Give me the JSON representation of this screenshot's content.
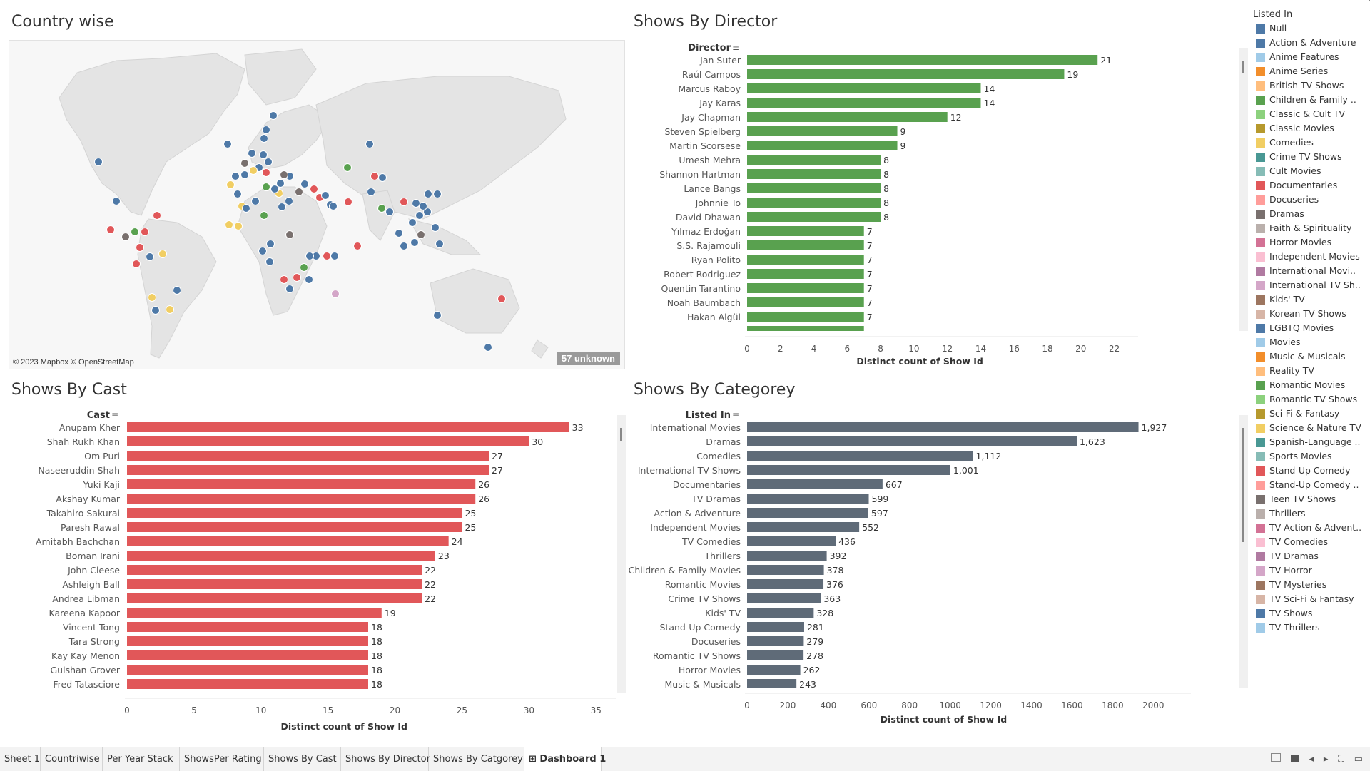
{
  "panels": {
    "country": "Country wise",
    "director": "Shows By Director",
    "cast": "Shows By Cast",
    "category": "Shows By Categorey"
  },
  "map": {
    "attribution": "© 2023 Mapbox © OpenStreetMap",
    "unknown": "57 unknown"
  },
  "legend": {
    "title": "Listed In",
    "items": [
      {
        "label": "Null",
        "color": "#4e79a7"
      },
      {
        "label": "Action & Adventure",
        "color": "#4e79a7"
      },
      {
        "label": "Anime Features",
        "color": "#a0cbe8"
      },
      {
        "label": "Anime Series",
        "color": "#f28e2b"
      },
      {
        "label": "British TV Shows",
        "color": "#ffbe7d"
      },
      {
        "label": "Children & Family ..",
        "color": "#59a14f"
      },
      {
        "label": "Classic & Cult TV",
        "color": "#8cd17d"
      },
      {
        "label": "Classic Movies",
        "color": "#b6992d"
      },
      {
        "label": "Comedies",
        "color": "#f1ce63"
      },
      {
        "label": "Crime TV Shows",
        "color": "#499894"
      },
      {
        "label": "Cult Movies",
        "color": "#86bcb6"
      },
      {
        "label": "Documentaries",
        "color": "#e15759"
      },
      {
        "label": "Docuseries",
        "color": "#ff9d9a"
      },
      {
        "label": "Dramas",
        "color": "#79706e"
      },
      {
        "label": "Faith & Spirituality",
        "color": "#bab0ac"
      },
      {
        "label": "Horror Movies",
        "color": "#d37295"
      },
      {
        "label": "Independent Movies",
        "color": "#fabfd2"
      },
      {
        "label": "International Movi..",
        "color": "#b07aa1"
      },
      {
        "label": "International TV Sh..",
        "color": "#d4a6c8"
      },
      {
        "label": "Kids' TV",
        "color": "#9d7660"
      },
      {
        "label": "Korean TV Shows",
        "color": "#d7b5a6"
      },
      {
        "label": "LGBTQ Movies",
        "color": "#4e79a7"
      },
      {
        "label": "Movies",
        "color": "#a0cbe8"
      },
      {
        "label": "Music & Musicals",
        "color": "#f28e2b"
      },
      {
        "label": "Reality TV",
        "color": "#ffbe7d"
      },
      {
        "label": "Romantic Movies",
        "color": "#59a14f"
      },
      {
        "label": "Romantic TV Shows",
        "color": "#8cd17d"
      },
      {
        "label": "Sci-Fi & Fantasy",
        "color": "#b6992d"
      },
      {
        "label": "Science & Nature TV",
        "color": "#f1ce63"
      },
      {
        "label": "Spanish-Language ..",
        "color": "#499894"
      },
      {
        "label": "Sports Movies",
        "color": "#86bcb6"
      },
      {
        "label": "Stand-Up Comedy",
        "color": "#e15759"
      },
      {
        "label": "Stand-Up Comedy ..",
        "color": "#ff9d9a"
      },
      {
        "label": "Teen TV Shows",
        "color": "#79706e"
      },
      {
        "label": "Thrillers",
        "color": "#bab0ac"
      },
      {
        "label": "TV Action & Advent..",
        "color": "#d37295"
      },
      {
        "label": "TV Comedies",
        "color": "#fabfd2"
      },
      {
        "label": "TV Dramas",
        "color": "#b07aa1"
      },
      {
        "label": "TV Horror",
        "color": "#d4a6c8"
      },
      {
        "label": "TV Mysteries",
        "color": "#9d7660"
      },
      {
        "label": "TV Sci-Fi & Fantasy",
        "color": "#d7b5a6"
      },
      {
        "label": "TV Shows",
        "color": "#4e79a7"
      },
      {
        "label": "TV Thrillers",
        "color": "#a0cbe8"
      }
    ]
  },
  "tabs": [
    {
      "label": "Sheet 1",
      "active": false
    },
    {
      "label": "Countriwise",
      "active": false
    },
    {
      "label": "Per Year Stack",
      "active": false
    },
    {
      "label": "ShowsPer Rating",
      "active": false
    },
    {
      "label": "Shows By Cast",
      "active": false
    },
    {
      "label": "Shows By Director",
      "active": false
    },
    {
      "label": "Shows By Catgorey",
      "active": false
    },
    {
      "label": "Dashboard 1",
      "active": true
    }
  ],
  "chart_data": [
    {
      "id": "director",
      "type": "bar",
      "orientation": "horizontal",
      "dim_header": "Director",
      "categories": [
        "Jan Suter",
        "Raúl Campos",
        "Marcus Raboy",
        "Jay Karas",
        "Jay Chapman",
        "Steven Spielberg",
        "Martin Scorsese",
        "Umesh Mehra",
        "Shannon Hartman",
        "Lance Bangs",
        "Johnnie To",
        "David Dhawan",
        "Yılmaz Erdoğan",
        "S.S. Rajamouli",
        "Ryan Polito",
        "Robert Rodriguez",
        "Quentin Tarantino",
        "Noah Baumbach",
        "Hakan Algül"
      ],
      "values": [
        21,
        19,
        14,
        14,
        12,
        9,
        9,
        8,
        8,
        8,
        8,
        8,
        7,
        7,
        7,
        7,
        7,
        7,
        7
      ],
      "xlabel": "Distinct count of Show Id",
      "xticks": [
        0,
        2,
        4,
        6,
        8,
        10,
        12,
        14,
        16,
        18,
        20,
        22
      ],
      "xlim": [
        0,
        23
      ],
      "color": "#59a14f"
    },
    {
      "id": "cast",
      "type": "bar",
      "orientation": "horizontal",
      "dim_header": "Cast",
      "categories": [
        "Anupam Kher",
        "Shah Rukh Khan",
        "Om Puri",
        "Naseeruddin Shah",
        "Yuki Kaji",
        "Akshay Kumar",
        "Takahiro Sakurai",
        "Paresh Rawal",
        "Amitabh Bachchan",
        "Boman Irani",
        "John Cleese",
        "Ashleigh Ball",
        "Andrea Libman",
        "Kareena Kapoor",
        "Vincent Tong",
        "Tara Strong",
        "Kay Kay Menon",
        "Gulshan Grover",
        "Fred Tatasciore"
      ],
      "values": [
        33,
        30,
        27,
        27,
        26,
        26,
        25,
        25,
        24,
        23,
        22,
        22,
        22,
        19,
        18,
        18,
        18,
        18,
        18
      ],
      "xlabel": "Distinct count of Show Id",
      "xticks": [
        0,
        5,
        10,
        15,
        20,
        25,
        30,
        35
      ],
      "xlim": [
        0,
        36
      ],
      "color": "#e15759"
    },
    {
      "id": "category",
      "type": "bar",
      "orientation": "horizontal",
      "dim_header": "Listed In",
      "categories": [
        "International Movies",
        "Dramas",
        "Comedies",
        "International TV Shows",
        "Documentaries",
        "TV Dramas",
        "Action & Adventure",
        "Independent Movies",
        "TV Comedies",
        "Thrillers",
        "Children & Family Movies",
        "Romantic Movies",
        "Crime TV Shows",
        "Kids' TV",
        "Stand-Up Comedy",
        "Docuseries",
        "Romantic TV Shows",
        "Horror Movies",
        "Music & Musicals"
      ],
      "values": [
        1927,
        1623,
        1112,
        1001,
        667,
        599,
        597,
        552,
        436,
        392,
        378,
        376,
        363,
        328,
        281,
        279,
        278,
        262,
        243
      ],
      "labels": [
        "1,927",
        "1,623",
        "1,112",
        "1,001",
        "667",
        "599",
        "597",
        "552",
        "436",
        "392",
        "378",
        "376",
        "363",
        "328",
        "281",
        "279",
        "278",
        "262",
        "243"
      ],
      "xlabel": "Distinct count of Show Id",
      "xticks": [
        0,
        200,
        400,
        600,
        800,
        1000,
        1200,
        1400,
        1600,
        1800,
        2000
      ],
      "xlim": [
        0,
        2150
      ],
      "color": "#5f6b78"
    }
  ]
}
